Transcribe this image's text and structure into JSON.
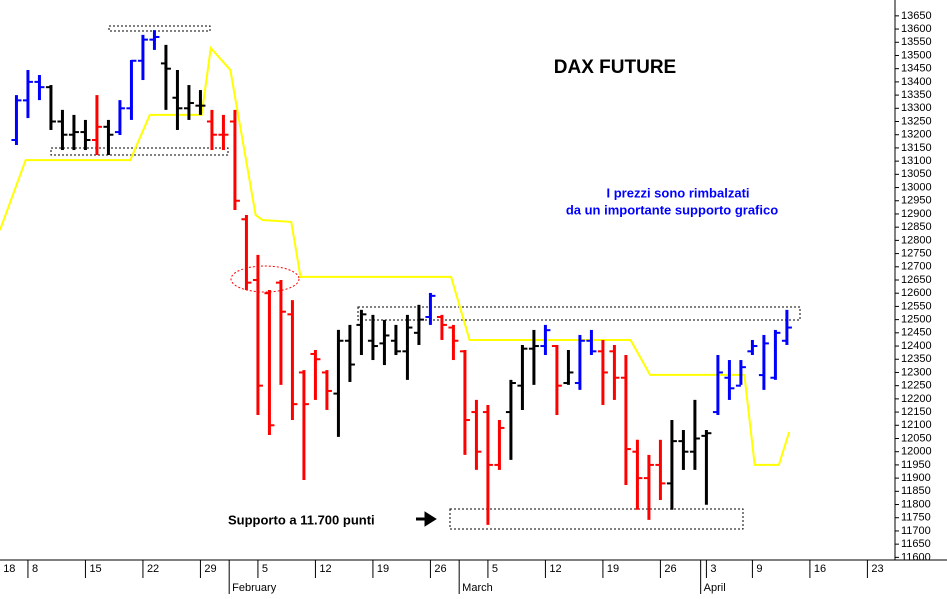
{
  "chart_data": {
    "type": "ohlc",
    "title": "DAX FUTURE",
    "annotations": [
      "I prezzi sono rimbalzati",
      "da un importante supporto grafico",
      "Supporto a 11.700 punti"
    ],
    "x": [
      -1,
      0,
      1,
      2,
      3,
      4,
      5,
      6,
      7,
      8,
      9,
      10,
      11,
      12,
      13,
      14,
      15,
      16,
      17,
      18,
      19,
      20,
      21,
      22,
      23,
      24,
      25,
      26,
      27,
      28,
      29,
      30,
      31,
      32,
      33,
      34,
      35,
      36,
      37,
      38,
      39,
      40,
      41,
      42,
      43,
      44,
      45,
      46,
      47,
      48,
      49,
      50,
      51,
      52,
      53,
      54,
      55,
      56,
      57,
      58,
      59,
      60,
      61,
      62,
      63,
      64,
      65,
      66
    ],
    "ohlc": [
      [
        13180,
        13350,
        13161,
        13330
      ],
      [
        13330,
        13445,
        13263,
        13400
      ],
      [
        13400,
        13426,
        13331,
        13380
      ],
      [
        13380,
        13388,
        13218,
        13250
      ],
      [
        13250,
        13294,
        13142,
        13200
      ],
      [
        13200,
        13275,
        13142,
        13210
      ],
      [
        13210,
        13256,
        13142,
        13180
      ],
      [
        13180,
        13350,
        13123,
        13230
      ],
      [
        13230,
        13256,
        13123,
        13200
      ],
      [
        13210,
        13331,
        13199,
        13300
      ],
      [
        13300,
        13483,
        13256,
        13480
      ],
      [
        13480,
        13578,
        13407,
        13560
      ],
      [
        13560,
        13596,
        13521,
        13570
      ],
      [
        13470,
        13540,
        13294,
        13450
      ],
      [
        13340,
        13445,
        13218,
        13300
      ],
      [
        13300,
        13388,
        13256,
        13320
      ],
      [
        13310,
        13369,
        13275,
        13310
      ],
      [
        13250,
        13294,
        13142,
        13200
      ],
      [
        13200,
        13275,
        13142,
        13200
      ],
      [
        13250,
        13294,
        12915,
        12950
      ],
      [
        12880,
        12896,
        12612,
        12640
      ],
      [
        12650,
        12745,
        12139,
        12250
      ],
      [
        12600,
        12612,
        12063,
        12100
      ],
      [
        12640,
        12650,
        12253,
        12530
      ],
      [
        12520,
        12574,
        12120,
        12180
      ],
      [
        12300,
        12309,
        11893,
        12180
      ],
      [
        12370,
        12385,
        12196,
        12350
      ],
      [
        12300,
        12309,
        12158,
        12230
      ],
      [
        12220,
        12461,
        12056,
        12420
      ],
      [
        12420,
        12480,
        12264,
        12330
      ],
      [
        12480,
        12537,
        12366,
        12520
      ],
      [
        12420,
        12518,
        12347,
        12400
      ],
      [
        12410,
        12499,
        12328,
        12440
      ],
      [
        12420,
        12480,
        12366,
        12380
      ],
      [
        12380,
        12518,
        12272,
        12470
      ],
      [
        12450,
        12556,
        12404,
        12500
      ],
      [
        12510,
        12601,
        12480,
        12590
      ],
      [
        12510,
        12518,
        12423,
        12480
      ],
      [
        12470,
        12480,
        12347,
        12420
      ],
      [
        12380,
        12385,
        11988,
        12120
      ],
      [
        12150,
        12196,
        11931,
        12000
      ],
      [
        12150,
        12177,
        11723,
        11950
      ],
      [
        11950,
        12120,
        11931,
        12090
      ],
      [
        12150,
        12272,
        11969,
        12260
      ],
      [
        12250,
        12404,
        12158,
        12390
      ],
      [
        12390,
        12461,
        12253,
        12400
      ],
      [
        12400,
        12480,
        12366,
        12460
      ],
      [
        12400,
        12404,
        12139,
        12250
      ],
      [
        12260,
        12385,
        12253,
        12300
      ],
      [
        12260,
        12442,
        12234,
        12420
      ],
      [
        12420,
        12461,
        12366,
        12380
      ],
      [
        12380,
        12423,
        12177,
        12300
      ],
      [
        12380,
        12404,
        12196,
        12280
      ],
      [
        12280,
        12366,
        11874,
        12010
      ],
      [
        12000,
        12045,
        11780,
        11900
      ],
      [
        11900,
        11988,
        11742,
        11950
      ],
      [
        11950,
        12045,
        11817,
        11880
      ],
      [
        11880,
        12120,
        11780,
        12040
      ],
      [
        12040,
        12082,
        11931,
        12000
      ],
      [
        12000,
        12196,
        11931,
        12050
      ],
      [
        12060,
        12082,
        11799,
        12070
      ],
      [
        12150,
        12366,
        12139,
        12300
      ],
      [
        12280,
        12347,
        12196,
        12240
      ],
      [
        12250,
        12347,
        12253,
        12320
      ],
      [
        12380,
        12423,
        12366,
        12400
      ],
      [
        12290,
        12442,
        12234,
        12410
      ],
      [
        12280,
        12461,
        12272,
        12450
      ],
      [
        12420,
        12537,
        12404,
        12470
      ]
    ],
    "colors": [
      "#0000ff",
      "#0000ff",
      "#0000ff",
      "#000000",
      "#000000",
      "#000000",
      "#000000",
      "#ff0000",
      "#000000",
      "#0000ff",
      "#0000ff",
      "#0000ff",
      "#0000ff",
      "#000000",
      "#000000",
      "#000000",
      "#000000",
      "#ff0000",
      "#ff0000",
      "#ff0000",
      "#ff0000",
      "#ff0000",
      "#ff0000",
      "#ff0000",
      "#ff0000",
      "#ff0000",
      "#ff0000",
      "#ff0000",
      "#000000",
      "#000000",
      "#000000",
      "#000000",
      "#000000",
      "#000000",
      "#000000",
      "#000000",
      "#0000ff",
      "#ff0000",
      "#ff0000",
      "#ff0000",
      "#ff0000",
      "#ff0000",
      "#ff0000",
      "#000000",
      "#000000",
      "#000000",
      "#0000ff",
      "#ff0000",
      "#000000",
      "#0000ff",
      "#0000ff",
      "#ff0000",
      "#ff0000",
      "#ff0000",
      "#ff0000",
      "#ff0000",
      "#ff0000",
      "#000000",
      "#000000",
      "#000000",
      "#000000",
      "#0000ff",
      "#0000ff",
      "#0000ff",
      "#0000ff",
      "#0000ff",
      "#0000ff",
      "#0000ff"
    ],
    "stop_line": {
      "color": "#ffff00",
      "x": [
        -2.43,
        -0.2,
        8.9,
        10.6,
        15.1,
        15.9,
        17.6,
        19.8,
        20.4,
        22.9,
        23.7,
        36.8,
        38.4,
        52.4,
        54.1,
        62.3,
        63.2,
        65.3,
        66.2
      ],
      "values": [
        12839,
        13104,
        13104,
        13275,
        13275,
        13528,
        13445,
        12896,
        12877,
        12870,
        12662,
        12662,
        12423,
        12423,
        12291,
        12291,
        11950,
        11950,
        12075
      ]
    },
    "xlim": [
      -2.43,
      75.4
    ],
    "ylim": [
      11590,
      13710
    ],
    "xticks": [
      {
        "value": -2.5,
        "label": "18"
      },
      {
        "value": 0,
        "label": "8"
      },
      {
        "value": 5,
        "label": "15"
      },
      {
        "value": 10,
        "label": "22"
      },
      {
        "value": 15,
        "label": "29"
      },
      {
        "value": 20,
        "label": "5"
      },
      {
        "value": 25,
        "label": "12"
      },
      {
        "value": 30,
        "label": "19"
      },
      {
        "value": 35,
        "label": "26"
      },
      {
        "value": 40,
        "label": "5"
      },
      {
        "value": 45,
        "label": "12"
      },
      {
        "value": 50,
        "label": "19"
      },
      {
        "value": 55,
        "label": "26"
      },
      {
        "value": 59,
        "label": "3"
      },
      {
        "value": 63,
        "label": "9"
      },
      {
        "value": 68,
        "label": "16"
      },
      {
        "value": 73,
        "label": "23"
      }
    ],
    "month_ticks": [
      {
        "value": 17.5,
        "label": "February"
      },
      {
        "value": 37.5,
        "label": "March"
      },
      {
        "value": 58.5,
        "label": "April"
      }
    ],
    "yticks": [
      11600,
      11650,
      11700,
      11750,
      11800,
      11850,
      11900,
      11950,
      12000,
      12050,
      12100,
      12150,
      12200,
      12250,
      12300,
      12350,
      12400,
      12450,
      12500,
      12550,
      12600,
      12650,
      12700,
      12750,
      12800,
      12850,
      12900,
      12950,
      13000,
      13050,
      13100,
      13150,
      13200,
      13250,
      13300,
      13350,
      13400,
      13450,
      13500,
      13550,
      13600,
      13650
    ]
  }
}
